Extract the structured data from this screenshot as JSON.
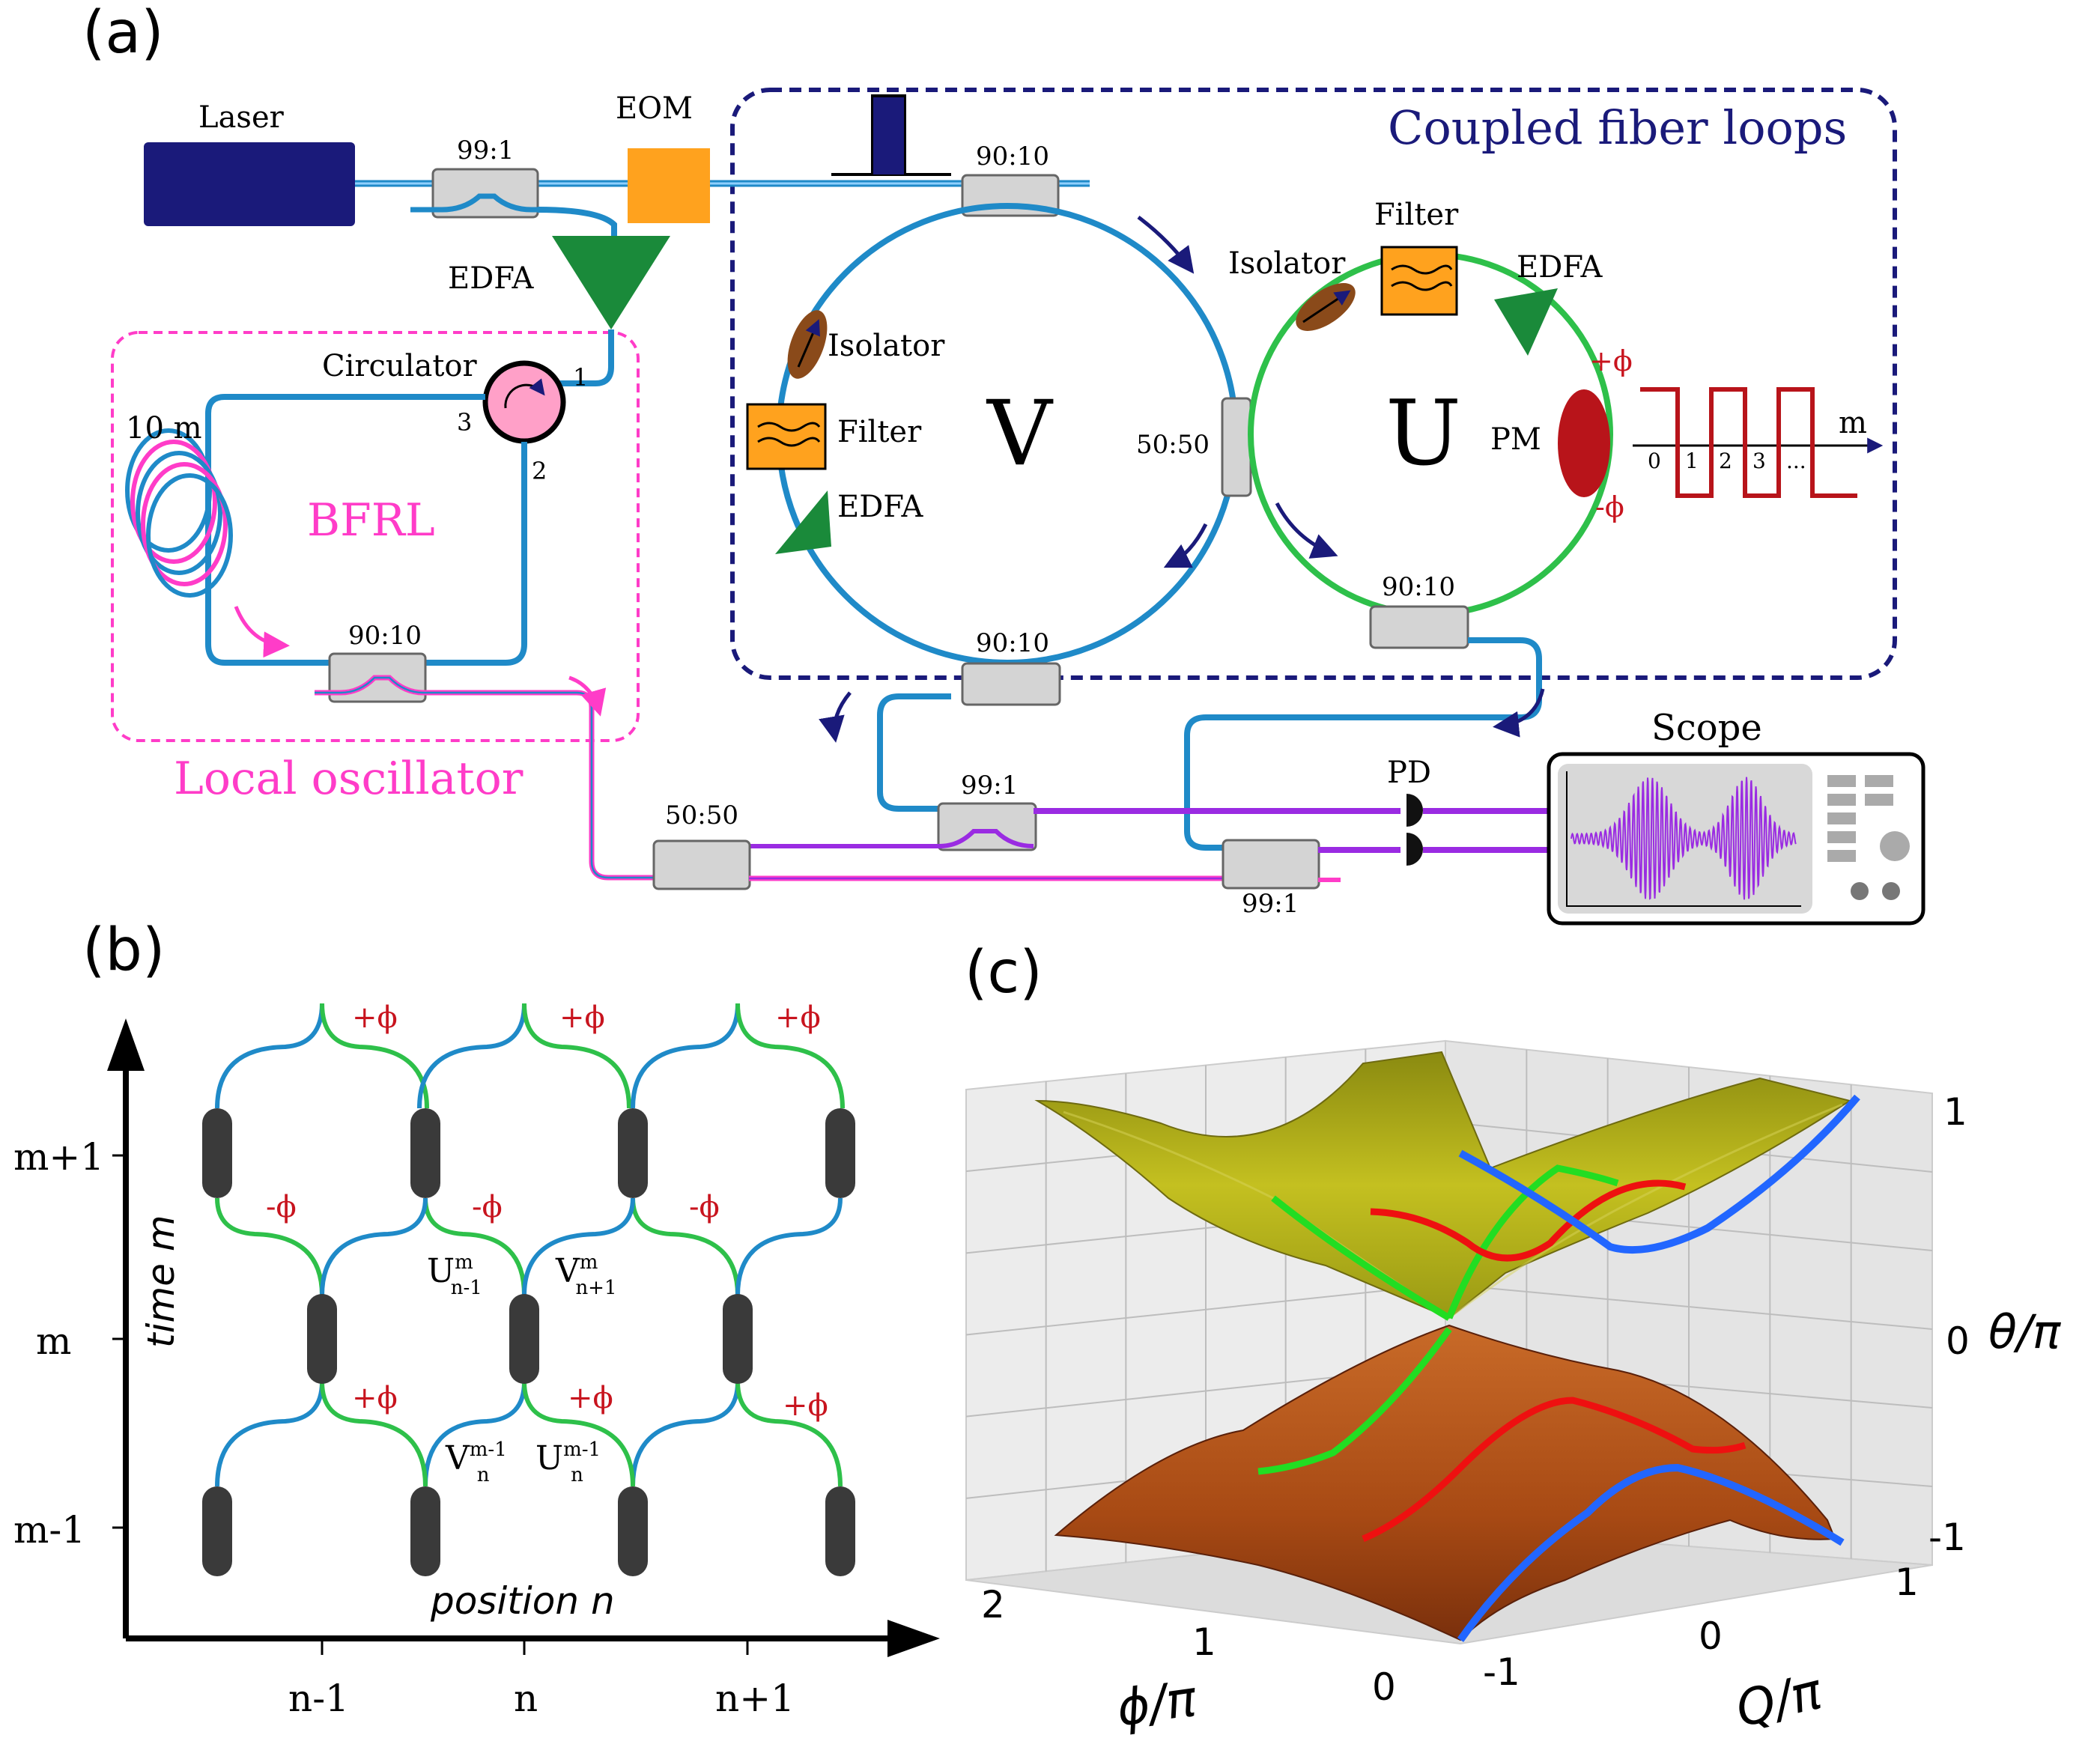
{
  "panel_a": {
    "label": "(a)",
    "laser": "Laser",
    "eom": "EOM",
    "coupler_99_1_top": "99:1",
    "edfa_main": "EDFA",
    "coupled_title": "Coupled fiber loops",
    "coupler_90_10_top": "90:10",
    "filter_u": "Filter",
    "isolator_u": "Isolator",
    "edfa_u": "EDFA",
    "isolator_v": "Isolator",
    "filter_v": "Filter",
    "edfa_v": "EDFA",
    "loop_v": "V",
    "loop_u": "U",
    "coupler_50_50_mid": "50:50",
    "pm": "PM",
    "plus_phi": "+ϕ",
    "minus_phi": "-ϕ",
    "m_axis": "m",
    "m_ticks": [
      "0",
      "1",
      "2",
      "3",
      "..."
    ],
    "coupler_90_10_u": "90:10",
    "coupler_90_10_v": "90:10",
    "circulator": "Circulator",
    "port_1": "1",
    "port_2": "2",
    "port_3": "3",
    "fiber_10m": "10 m",
    "bfrl": "BFRL",
    "coupler_90_10_lo": "90:10",
    "local_oscillator": "Local oscillator",
    "coupler_50_50_bottom": "50:50",
    "coupler_99_1_mid": "99:1",
    "coupler_99_1_bottom": "99:1",
    "pd": "PD",
    "scope": "Scope"
  },
  "panel_b": {
    "label": "(b)",
    "y_axis": "time m",
    "x_axis": "position n",
    "y_ticks": [
      "m+1",
      "m",
      "m-1"
    ],
    "x_ticks": [
      "n-1",
      "n",
      "n+1"
    ],
    "plus_phi": "+ϕ",
    "minus_phi": "-ϕ",
    "u_upper": "U",
    "u_upper_sup": "m",
    "u_upper_sub": "n-1",
    "v_upper": "V",
    "v_upper_sup": "m",
    "v_upper_sub": "n+1",
    "v_lower": "V",
    "v_lower_sup": "m-1",
    "v_lower_sub": "n",
    "u_lower": "U",
    "u_lower_sup": "m-1",
    "u_lower_sub": "n"
  },
  "panel_c": {
    "label": "(c)",
    "z_label": "θ/π",
    "z_ticks": [
      "1",
      "0",
      "-1"
    ],
    "phi_label": "ϕ/π",
    "phi_ticks": [
      "2",
      "1",
      "0"
    ],
    "q_label": "Q/π",
    "q_ticks": [
      "-1",
      "0",
      "1"
    ]
  },
  "colors": {
    "fiber_v": "#1f8ac8",
    "fiber_u": "#2ec04a",
    "local_osc": "#ff3cc8",
    "navy": "#1a1a7a",
    "phase_red": "#c8141e",
    "upper_band": "#b8b418",
    "lower_band": "#b8501a",
    "trace_green": "#22dd22",
    "trace_red": "#ee1010",
    "trace_blue": "#2266ff",
    "purple": "#9a2be2",
    "orange": "#ffa21e"
  }
}
